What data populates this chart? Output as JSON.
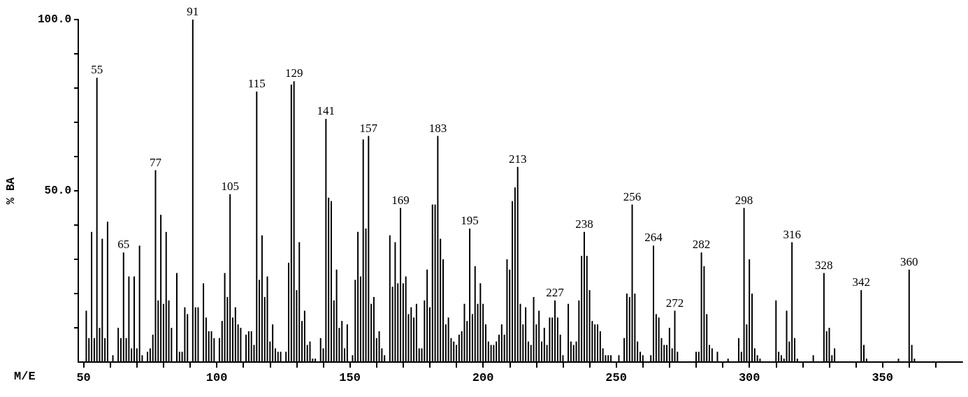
{
  "chart_data": {
    "type": "bar",
    "xlabel": "M/E",
    "ylabel": "% BA",
    "color": "#000000",
    "x": [
      51,
      52,
      53,
      54,
      55,
      56,
      57,
      58,
      59,
      61,
      63,
      64,
      65,
      66,
      67,
      68,
      69,
      70,
      71,
      72,
      74,
      75,
      76,
      77,
      78,
      79,
      80,
      81,
      82,
      83,
      85,
      86,
      87,
      88,
      89,
      91,
      92,
      93,
      95,
      96,
      97,
      98,
      99,
      101,
      102,
      103,
      104,
      105,
      106,
      107,
      108,
      109,
      111,
      112,
      113,
      114,
      115,
      116,
      117,
      118,
      119,
      120,
      121,
      122,
      123,
      124,
      126,
      127,
      128,
      129,
      130,
      131,
      132,
      133,
      134,
      135,
      136,
      137,
      139,
      140,
      141,
      142,
      143,
      144,
      145,
      146,
      147,
      148,
      149,
      151,
      152,
      153,
      154,
      155,
      156,
      157,
      158,
      159,
      160,
      161,
      162,
      163,
      165,
      166,
      167,
      168,
      169,
      170,
      171,
      172,
      173,
      174,
      175,
      176,
      177,
      178,
      179,
      180,
      181,
      182,
      183,
      184,
      185,
      186,
      187,
      188,
      189,
      190,
      191,
      192,
      193,
      194,
      195,
      196,
      197,
      198,
      199,
      200,
      201,
      202,
      203,
      204,
      205,
      206,
      207,
      208,
      209,
      210,
      211,
      212,
      213,
      214,
      215,
      216,
      217,
      218,
      219,
      220,
      221,
      222,
      223,
      224,
      225,
      226,
      227,
      228,
      229,
      230,
      232,
      233,
      234,
      235,
      236,
      237,
      238,
      239,
      240,
      241,
      242,
      243,
      244,
      245,
      246,
      247,
      248,
      251,
      253,
      254,
      255,
      256,
      257,
      258,
      259,
      260,
      263,
      264,
      265,
      266,
      267,
      268,
      269,
      270,
      271,
      272,
      273,
      280,
      281,
      282,
      283,
      284,
      285,
      286,
      288,
      292,
      296,
      297,
      298,
      299,
      300,
      301,
      302,
      303,
      304,
      310,
      311,
      312,
      313,
      314,
      315,
      316,
      317,
      318,
      324,
      328,
      329,
      330,
      331,
      332,
      342,
      343,
      344,
      356,
      360,
      361,
      362
    ],
    "values": [
      15,
      7,
      38,
      7,
      83,
      10,
      36,
      7,
      41,
      2,
      10,
      7,
      32,
      7,
      25,
      4,
      25,
      4,
      34,
      2,
      3,
      4,
      8,
      56,
      18,
      43,
      17,
      38,
      18,
      10,
      26,
      3,
      3,
      16,
      14,
      100,
      16,
      16,
      23,
      13,
      9,
      9,
      7,
      7,
      12,
      26,
      19,
      49,
      13,
      16,
      11,
      10,
      8,
      9,
      9,
      5,
      79,
      24,
      37,
      19,
      25,
      6,
      11,
      4,
      3,
      3,
      3,
      29,
      81,
      82,
      21,
      35,
      12,
      15,
      5,
      6,
      1,
      1,
      7,
      4,
      71,
      48,
      47,
      18,
      27,
      10,
      12,
      4,
      11,
      2,
      24,
      38,
      25,
      65,
      39,
      66,
      17,
      19,
      7,
      9,
      4,
      2,
      37,
      22,
      35,
      23,
      45,
      23,
      25,
      14,
      16,
      13,
      17,
      4,
      4,
      18,
      27,
      16,
      46,
      46,
      66,
      36,
      30,
      11,
      13,
      7,
      6,
      5,
      8,
      9,
      17,
      12,
      39,
      14,
      28,
      17,
      23,
      17,
      11,
      6,
      5,
      5,
      6,
      8,
      11,
      8,
      30,
      27,
      47,
      51,
      57,
      17,
      11,
      16,
      6,
      5,
      19,
      11,
      15,
      6,
      10,
      5,
      13,
      13,
      18,
      13,
      8,
      2,
      17,
      6,
      5,
      6,
      18,
      31,
      38,
      31,
      21,
      12,
      11,
      11,
      9,
      4,
      2,
      2,
      2,
      2,
      7,
      20,
      19,
      46,
      20,
      6,
      3,
      2,
      2,
      34,
      14,
      13,
      7,
      5,
      5,
      10,
      4,
      15,
      3,
      3,
      3,
      32,
      28,
      14,
      5,
      4,
      3,
      1,
      7,
      3,
      45,
      11,
      30,
      20,
      4,
      2,
      1,
      18,
      3,
      2,
      1,
      15,
      6,
      35,
      7,
      1,
      2,
      26,
      9,
      10,
      2,
      4,
      21,
      5,
      1,
      1,
      27,
      5,
      1
    ],
    "xlim": [
      48,
      380
    ],
    "xticks": [
      {
        "value": 50,
        "label": "50"
      },
      {
        "value": 60,
        "label": null
      },
      {
        "value": 70,
        "label": null
      },
      {
        "value": 80,
        "label": null
      },
      {
        "value": 90,
        "label": null
      },
      {
        "value": 100,
        "label": "100"
      },
      {
        "value": 110,
        "label": null
      },
      {
        "value": 120,
        "label": null
      },
      {
        "value": 130,
        "label": null
      },
      {
        "value": 140,
        "label": null
      },
      {
        "value": 150,
        "label": "150"
      },
      {
        "value": 160,
        "label": null
      },
      {
        "value": 170,
        "label": null
      },
      {
        "value": 180,
        "label": null
      },
      {
        "value": 190,
        "label": null
      },
      {
        "value": 200,
        "label": "200"
      },
      {
        "value": 210,
        "label": null
      },
      {
        "value": 220,
        "label": null
      },
      {
        "value": 230,
        "label": null
      },
      {
        "value": 240,
        "label": null
      },
      {
        "value": 250,
        "label": "250"
      },
      {
        "value": 260,
        "label": null
      },
      {
        "value": 270,
        "label": null
      },
      {
        "value": 280,
        "label": null
      },
      {
        "value": 290,
        "label": null
      },
      {
        "value": 300,
        "label": "300"
      },
      {
        "value": 310,
        "label": null
      },
      {
        "value": 320,
        "label": null
      },
      {
        "value": 330,
        "label": null
      },
      {
        "value": 340,
        "label": null
      },
      {
        "value": 350,
        "label": "350"
      },
      {
        "value": 360,
        "label": null
      },
      {
        "value": 370,
        "label": null
      }
    ],
    "ylim": [
      0,
      100
    ],
    "yticks": [
      {
        "value": 10,
        "label": null
      },
      {
        "value": 20,
        "label": null
      },
      {
        "value": 30,
        "label": null
      },
      {
        "value": 40,
        "label": null
      },
      {
        "value": 50,
        "label": "50.0"
      },
      {
        "value": 60,
        "label": null
      },
      {
        "value": 70,
        "label": null
      },
      {
        "value": 80,
        "label": null
      },
      {
        "value": 90,
        "label": null
      },
      {
        "value": 100,
        "label": "100.0"
      }
    ],
    "grid": false,
    "annotations": [
      {
        "text": "55",
        "x": 55,
        "y": 83
      },
      {
        "text": "65",
        "x": 65,
        "y": 32
      },
      {
        "text": "77",
        "x": 77,
        "y": 56
      },
      {
        "text": "91",
        "x": 91,
        "y": 100
      },
      {
        "text": "105",
        "x": 105,
        "y": 49
      },
      {
        "text": "115",
        "x": 115,
        "y": 79
      },
      {
        "text": "129",
        "x": 129,
        "y": 82
      },
      {
        "text": "141",
        "x": 141,
        "y": 71
      },
      {
        "text": "157",
        "x": 157,
        "y": 66
      },
      {
        "text": "169",
        "x": 169,
        "y": 45
      },
      {
        "text": "183",
        "x": 183,
        "y": 66
      },
      {
        "text": "195",
        "x": 195,
        "y": 39
      },
      {
        "text": "213",
        "x": 213,
        "y": 57
      },
      {
        "text": "227",
        "x": 227,
        "y": 18
      },
      {
        "text": "238",
        "x": 238,
        "y": 38
      },
      {
        "text": "256",
        "x": 256,
        "y": 46
      },
      {
        "text": "264",
        "x": 264,
        "y": 34
      },
      {
        "text": "272",
        "x": 272,
        "y": 15
      },
      {
        "text": "282",
        "x": 282,
        "y": 32
      },
      {
        "text": "298",
        "x": 298,
        "y": 45
      },
      {
        "text": "316",
        "x": 316,
        "y": 35
      },
      {
        "text": "328",
        "x": 328,
        "y": 26
      },
      {
        "text": "342",
        "x": 342,
        "y": 21
      },
      {
        "text": "360",
        "x": 360,
        "y": 27
      }
    ]
  }
}
